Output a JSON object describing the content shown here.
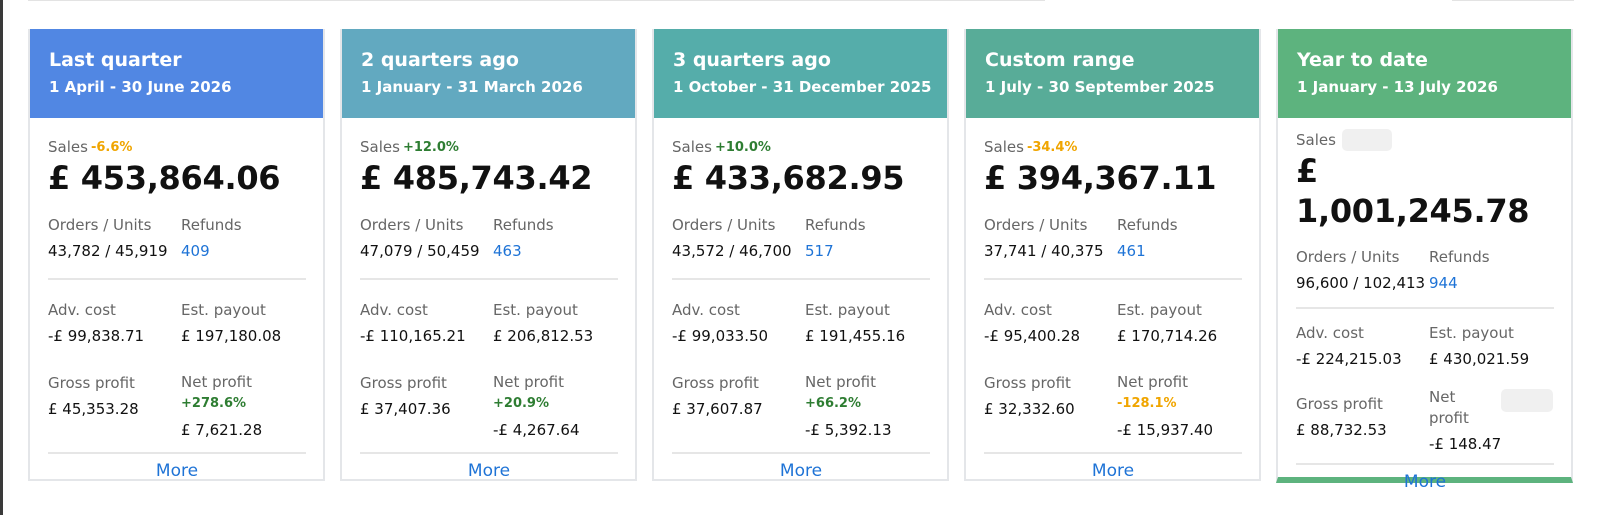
{
  "labels": {
    "sales": "Sales",
    "orders_units": "Orders / Units",
    "refunds": "Refunds",
    "adv_cost": "Adv. cost",
    "est_payout": "Est. payout",
    "gross_profit": "Gross profit",
    "net_profit": "Net profit",
    "more": "More"
  },
  "colors": {
    "last_quarter": "#5187e3",
    "two_quarters": "#62a9c0",
    "three_quarters": "#55adaa",
    "custom_range": "#58ac98",
    "year_to_date": "#5db37e",
    "positive": "#2e7d32",
    "negative": "#f0a500",
    "link": "#1e73d6"
  },
  "cards": [
    {
      "title": "Last quarter",
      "range": "1 April - 30 June 2026",
      "sales_change": "-6.6%",
      "sales": "£ 453,864.06",
      "orders_units": "43,782 / 45,919",
      "refunds": "409",
      "adv_cost": "-£ 99,838.71",
      "est_payout": "£ 197,180.08",
      "gross_profit": "£ 45,353.28",
      "net_profit_change": "+278.6%",
      "net_profit": "£ 7,621.28"
    },
    {
      "title": "2 quarters ago",
      "range": "1 January - 31 March 2026",
      "sales_change": "+12.0%",
      "sales": "£ 485,743.42",
      "orders_units": "47,079 / 50,459",
      "refunds": "463",
      "adv_cost": "-£ 110,165.21",
      "est_payout": "£ 206,812.53",
      "gross_profit": "£ 37,407.36",
      "net_profit_change": "+20.9%",
      "net_profit": "-£ 4,267.64"
    },
    {
      "title": "3 quarters ago",
      "range": "1 October - 31 December 2025",
      "sales_change": "+10.0%",
      "sales": "£ 433,682.95",
      "orders_units": "43,572 / 46,700",
      "refunds": "517",
      "adv_cost": "-£ 99,033.50",
      "est_payout": "£ 191,455.16",
      "gross_profit": "£ 37,607.87",
      "net_profit_change": "+66.2%",
      "net_profit": "-£ 5,392.13"
    },
    {
      "title": "Custom range",
      "range": "1 July - 30 September 2025",
      "sales_change": "-34.4%",
      "sales": "£ 394,367.11",
      "orders_units": "37,741 / 40,375",
      "refunds": "461",
      "adv_cost": "-£ 95,400.28",
      "est_payout": "£ 170,714.26",
      "gross_profit": "£ 32,332.60",
      "net_profit_change": "-128.1%",
      "net_profit": "-£ 15,937.40"
    },
    {
      "title": "Year to date",
      "range": "1 January - 13 July 2026",
      "sales": "£ 1,001,245.78",
      "orders_units": "96,600 / 102,413",
      "refunds": "944",
      "adv_cost": "-£ 224,215.03",
      "est_payout": "£ 430,021.59",
      "gross_profit": "£ 88,732.53",
      "net_profit": "-£ 148.47"
    }
  ]
}
